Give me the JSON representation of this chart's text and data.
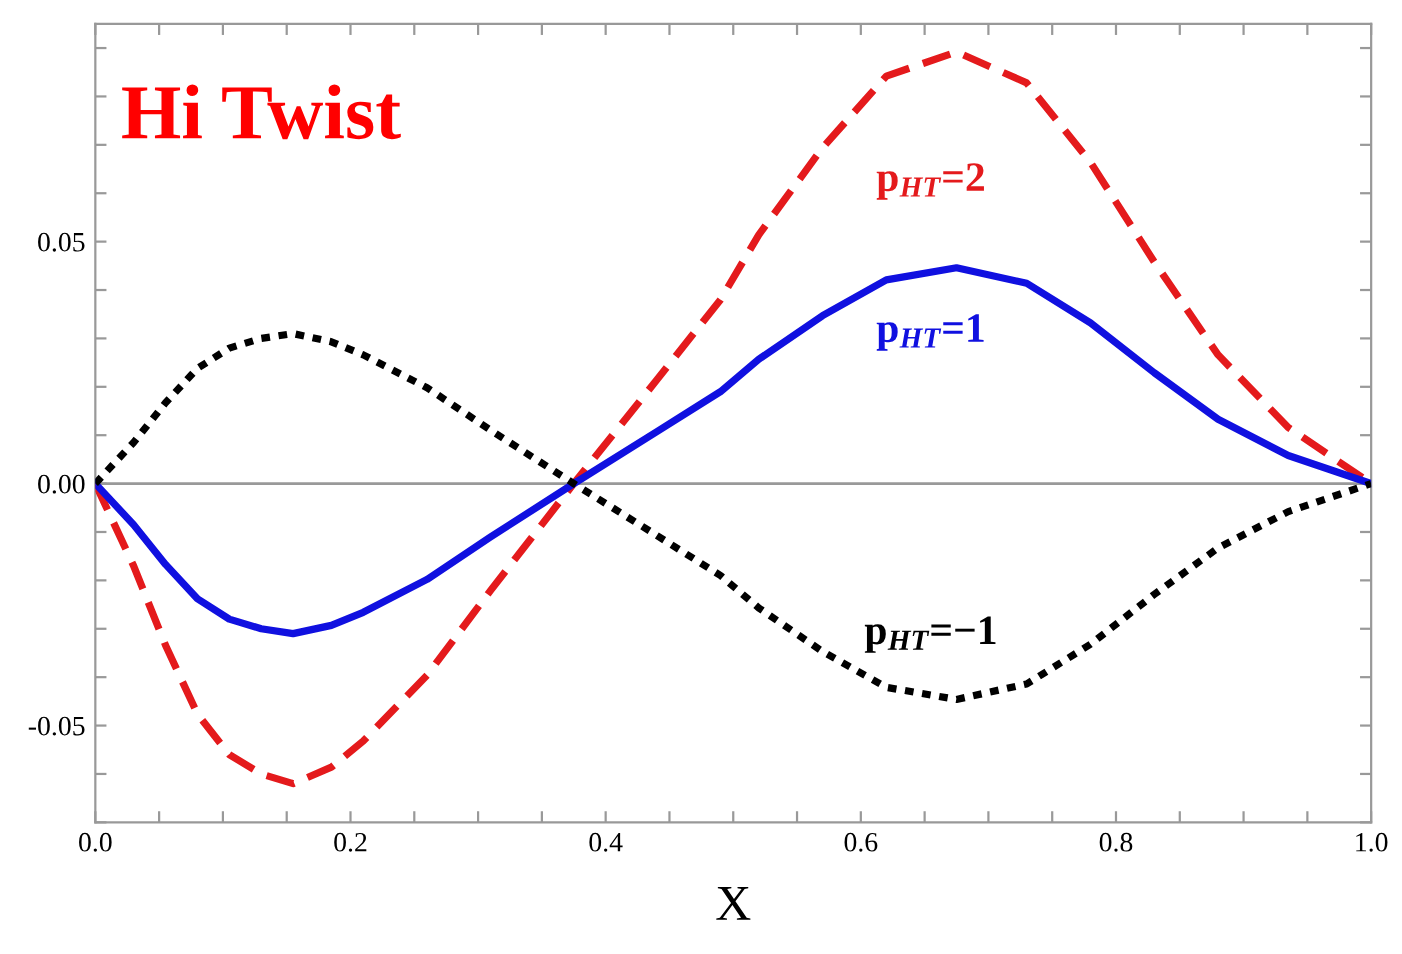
{
  "chart_data": {
    "type": "line",
    "xlabel": "X",
    "annotations": [
      "Hi Twist"
    ],
    "x": [
      0,
      0.03,
      0.055,
      0.08,
      0.105,
      0.13,
      0.155,
      0.185,
      0.21,
      0.26,
      0.31,
      0.375,
      0.44,
      0.49,
      0.52,
      0.57,
      0.62,
      0.675,
      0.73,
      0.78,
      0.83,
      0.88,
      0.935,
      1.0
    ],
    "series": [
      {
        "name": "p$_{HT}$=2",
        "color": "#e41a1c",
        "line_style": "dashed",
        "values": [
          0,
          -0.017,
          -0.0334,
          -0.0476,
          -0.056,
          -0.06,
          -0.062,
          -0.0586,
          -0.0532,
          -0.0396,
          -0.022,
          0,
          0.0214,
          0.038,
          0.0514,
          0.0694,
          0.0842,
          0.0892,
          0.0828,
          0.0664,
          0.0458,
          0.0266,
          0.0116,
          0
        ]
      },
      {
        "name": "p$_{HT}$=1",
        "color": "#1010e0",
        "line_style": "solid",
        "values": [
          0,
          -0.0085,
          -0.0167,
          -0.0238,
          -0.028,
          -0.03,
          -0.031,
          -0.0293,
          -0.0266,
          -0.0198,
          -0.011,
          0,
          0.0107,
          0.019,
          0.0257,
          0.0347,
          0.0421,
          0.0446,
          0.0414,
          0.0332,
          0.0229,
          0.0133,
          0.0058,
          0
        ]
      },
      {
        "name": "p$_{HT}$=−1",
        "color": "#000000",
        "line_style": "dotted",
        "values": [
          0,
          0.0085,
          0.0167,
          0.0238,
          0.028,
          0.03,
          0.031,
          0.0293,
          0.0266,
          0.0198,
          0.011,
          0,
          -0.0107,
          -0.019,
          -0.0257,
          -0.0347,
          -0.0421,
          -0.0446,
          -0.0414,
          -0.0332,
          -0.0229,
          -0.0133,
          -0.0058,
          0
        ]
      }
    ],
    "xlim": [
      0,
      1
    ],
    "ylim": [
      -0.07,
      0.095
    ],
    "xticks": [
      {
        "value": 0,
        "label": "0.0"
      },
      {
        "value": 0.05,
        "label": null
      },
      {
        "value": 0.1,
        "label": null
      },
      {
        "value": 0.15,
        "label": null
      },
      {
        "value": 0.2,
        "label": "0.2"
      },
      {
        "value": 0.25,
        "label": null
      },
      {
        "value": 0.3,
        "label": null
      },
      {
        "value": 0.35,
        "label": null
      },
      {
        "value": 0.4,
        "label": "0.4"
      },
      {
        "value": 0.45,
        "label": null
      },
      {
        "value": 0.5,
        "label": null
      },
      {
        "value": 0.55,
        "label": null
      },
      {
        "value": 0.6,
        "label": "0.6"
      },
      {
        "value": 0.65,
        "label": null
      },
      {
        "value": 0.7,
        "label": null
      },
      {
        "value": 0.75,
        "label": null
      },
      {
        "value": 0.8,
        "label": "0.8"
      },
      {
        "value": 0.85,
        "label": null
      },
      {
        "value": 0.9,
        "label": null
      },
      {
        "value": 0.95,
        "label": null
      },
      {
        "value": 1.0,
        "label": "1.0"
      }
    ],
    "yticks": [
      {
        "value": -0.07,
        "label": null
      },
      {
        "value": -0.06,
        "label": null
      },
      {
        "value": -0.05,
        "label": "-0.05"
      },
      {
        "value": -0.04,
        "label": null
      },
      {
        "value": -0.03,
        "label": null
      },
      {
        "value": -0.02,
        "label": null
      },
      {
        "value": -0.01,
        "label": null
      },
      {
        "value": 0,
        "label": "0.00"
      },
      {
        "value": 0.01,
        "label": null
      },
      {
        "value": 0.02,
        "label": null
      },
      {
        "value": 0.03,
        "label": null
      },
      {
        "value": 0.04,
        "label": null
      },
      {
        "value": 0.05,
        "label": "0.05"
      },
      {
        "value": 0.06,
        "label": null
      },
      {
        "value": 0.07,
        "label": null
      },
      {
        "value": 0.08,
        "label": null
      },
      {
        "value": 0.09,
        "label": null
      }
    ],
    "ref_lines": [
      {
        "axis": "y",
        "value": 0,
        "color": "#999999"
      }
    ],
    "grid": false,
    "legend": false
  }
}
